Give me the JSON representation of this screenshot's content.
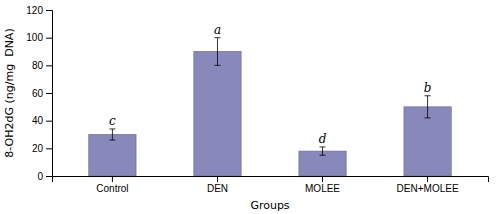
{
  "chart_data": {
    "type": "bar",
    "categories": [
      "Control",
      "DEN",
      "MOLEE",
      "DEN+MOLEE"
    ],
    "values": [
      30,
      90,
      18,
      50
    ],
    "errors": [
      4,
      10,
      3,
      8
    ],
    "letters": [
      "c",
      "a",
      "d",
      "b"
    ],
    "color": "#8888bb",
    "xlabel": "Groups",
    "ylabel": "8-OH2dG (ng/mg  DNA)",
    "ylim": [
      0,
      120
    ],
    "yticks": [
      0,
      20,
      40,
      60,
      80,
      100,
      120
    ],
    "grid": false
  }
}
